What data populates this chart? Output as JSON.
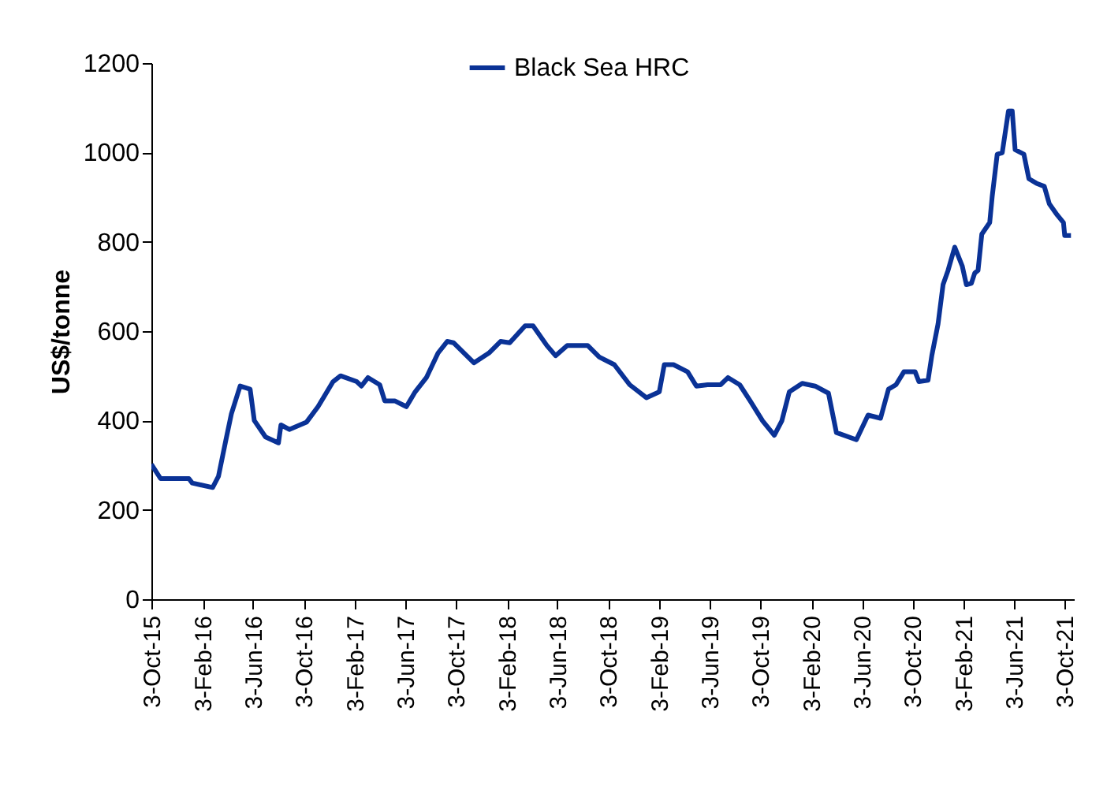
{
  "chart_data": {
    "type": "line",
    "ylabel": "US$/tonne",
    "legend": "top",
    "grid": false,
    "xlim": [
      "2015-10-03",
      "2021-10-25"
    ],
    "ylim": [
      0,
      1200
    ],
    "yticks": [
      0,
      200,
      400,
      600,
      800,
      1000,
      1200
    ],
    "xticks": [
      {
        "value": "2015-10-03",
        "label": "3-Oct-15"
      },
      {
        "value": "2016-02-03",
        "label": "3-Feb-16"
      },
      {
        "value": "2016-06-03",
        "label": "3-Jun-16"
      },
      {
        "value": "2016-10-03",
        "label": "3-Oct-16"
      },
      {
        "value": "2017-02-03",
        "label": "3-Feb-17"
      },
      {
        "value": "2017-06-03",
        "label": "3-Jun-17"
      },
      {
        "value": "2017-10-03",
        "label": "3-Oct-17"
      },
      {
        "value": "2018-02-03",
        "label": "3-Feb-18"
      },
      {
        "value": "2018-06-03",
        "label": "3-Jun-18"
      },
      {
        "value": "2018-10-03",
        "label": "3-Oct-18"
      },
      {
        "value": "2019-02-03",
        "label": "3-Feb-19"
      },
      {
        "value": "2019-06-03",
        "label": "3-Jun-19"
      },
      {
        "value": "2019-10-03",
        "label": "3-Oct-19"
      },
      {
        "value": "2020-02-03",
        "label": "3-Feb-20"
      },
      {
        "value": "2020-06-03",
        "label": "3-Jun-20"
      },
      {
        "value": "2020-10-03",
        "label": "3-Oct-20"
      },
      {
        "value": "2021-02-03",
        "label": "3-Feb-21"
      },
      {
        "value": "2021-06-03",
        "label": "3-Jun-21"
      },
      {
        "value": "2021-10-03",
        "label": "3-Oct-21"
      }
    ],
    "x": [
      "2015-10-03",
      "2015-10-25",
      "2016-01-01",
      "2016-01-09",
      "2016-02-27",
      "2016-03-12",
      "2016-03-30",
      "2016-04-12",
      "2016-05-03",
      "2016-05-27",
      "2016-06-06",
      "2016-07-03",
      "2016-08-03",
      "2016-08-09",
      "2016-08-29",
      "2016-10-09",
      "2016-11-06",
      "2016-12-12",
      "2016-12-30",
      "2017-02-07",
      "2017-02-18",
      "2017-03-06",
      "2017-04-03",
      "2017-04-15",
      "2017-05-09",
      "2017-06-06",
      "2017-06-27",
      "2017-07-24",
      "2017-08-21",
      "2017-09-12",
      "2017-09-27",
      "2017-11-15",
      "2017-12-21",
      "2018-01-18",
      "2018-02-09",
      "2018-03-18",
      "2018-04-06",
      "2018-05-09",
      "2018-05-30",
      "2018-06-27",
      "2018-08-15",
      "2018-09-12",
      "2018-10-18",
      "2018-11-24",
      "2019-01-03",
      "2019-02-03",
      "2019-02-15",
      "2019-03-09",
      "2019-04-12",
      "2019-05-03",
      "2019-05-30",
      "2019-06-30",
      "2019-07-18",
      "2019-08-15",
      "2019-09-09",
      "2019-10-09",
      "2019-11-06",
      "2019-11-24",
      "2019-12-12",
      "2020-01-12",
      "2020-02-12",
      "2020-03-15",
      "2020-04-03",
      "2020-05-21",
      "2020-06-18",
      "2020-07-18",
      "2020-08-06",
      "2020-08-24",
      "2020-09-12",
      "2020-10-09",
      "2020-10-18",
      "2020-11-09",
      "2020-11-18",
      "2020-12-03",
      "2020-12-15",
      "2020-12-27",
      "2021-01-12",
      "2021-01-30",
      "2021-02-09",
      "2021-02-21",
      "2021-03-01",
      "2021-03-09",
      "2021-03-18",
      "2021-04-06",
      "2021-04-12",
      "2021-04-24",
      "2021-05-06",
      "2021-05-21",
      "2021-05-30",
      "2021-06-06",
      "2021-06-27",
      "2021-07-09",
      "2021-07-27",
      "2021-08-15",
      "2021-08-27",
      "2021-09-15",
      "2021-09-30",
      "2021-10-03",
      "2021-10-18"
    ],
    "series": [
      {
        "name": "Black Sea HRC",
        "color": "#0a3296",
        "values": [
          302,
          270,
          270,
          260,
          250,
          275,
          357,
          415,
          477,
          470,
          400,
          363,
          350,
          390,
          380,
          396,
          431,
          487,
          500,
          487,
          477,
          496,
          480,
          444,
          444,
          431,
          464,
          496,
          551,
          577,
          574,
          529,
          551,
          577,
          574,
          612,
          612,
          568,
          545,
          568,
          568,
          542,
          525,
          480,
          451,
          464,
          525,
          525,
          509,
          477,
          480,
          480,
          496,
          480,
          444,
          399,
          367,
          399,
          464,
          483,
          477,
          461,
          373,
          357,
          412,
          405,
          470,
          480,
          509,
          509,
          487,
          490,
          545,
          616,
          704,
          736,
          788,
          746,
          704,
          707,
          730,
          736,
          817,
          843,
          902,
          996,
          999,
          1093,
          1093,
          1006,
          996,
          941,
          931,
          924,
          885,
          860,
          843,
          814,
          814
        ]
      }
    ]
  }
}
